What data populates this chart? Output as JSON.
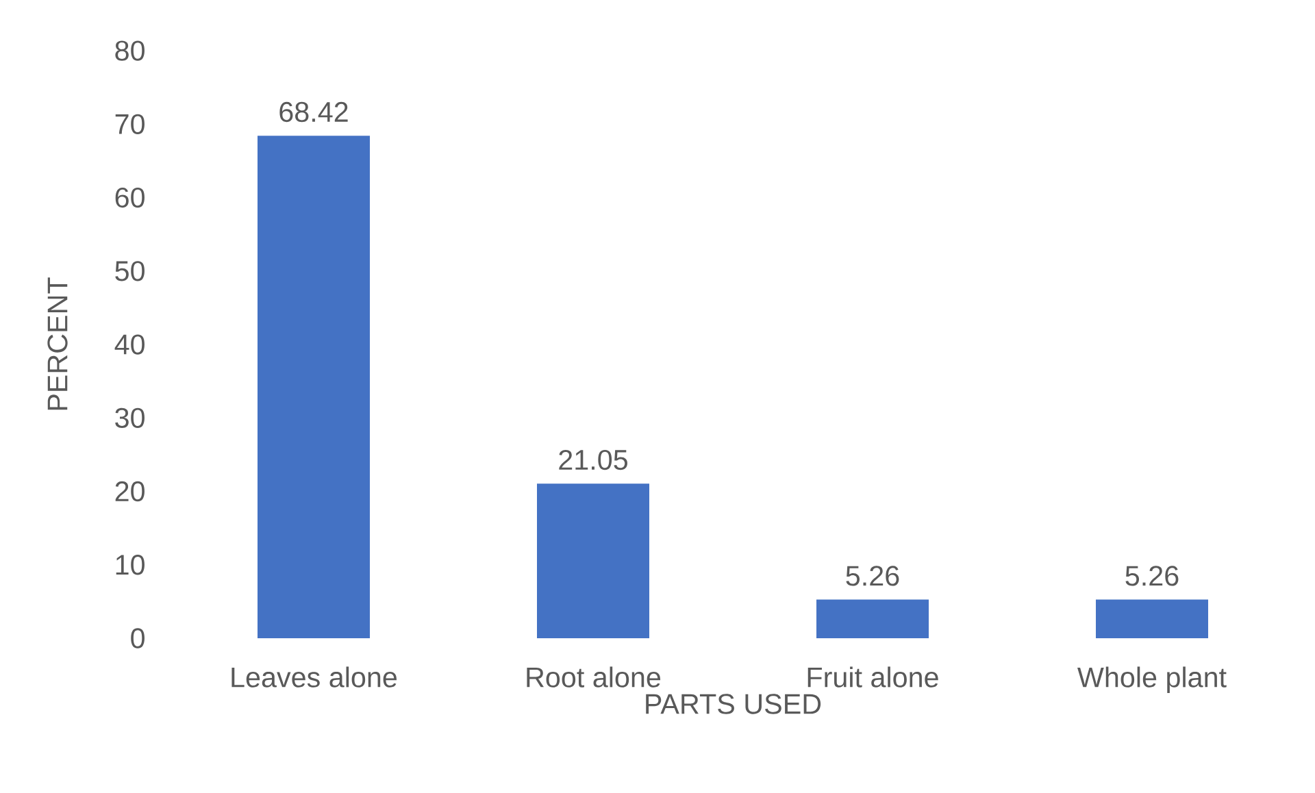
{
  "chart_data": {
    "type": "bar",
    "xlabel": "PARTS USED",
    "ylabel": "PERCENT",
    "categories": [
      "Leaves alone",
      "Root alone",
      "Fruit alone",
      "Whole plant"
    ],
    "values": [
      68.42,
      21.05,
      5.26,
      5.26
    ],
    "color": "#4472c4",
    "ylim": [
      0,
      80
    ],
    "yticks": [
      0,
      10,
      20,
      30,
      40,
      50,
      60,
      70,
      80
    ],
    "data_labels": true,
    "grid": false,
    "legend": false
  }
}
